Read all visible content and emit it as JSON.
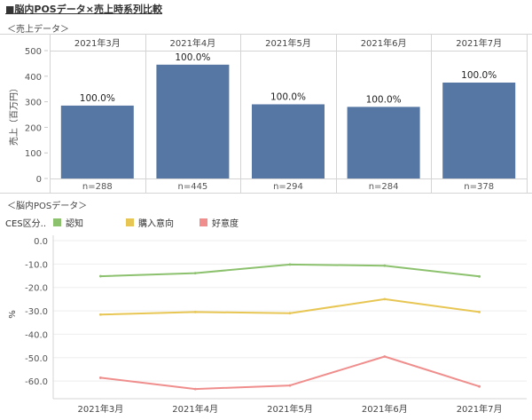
{
  "page_title": "■脳内POSデータ×売上時系列比較",
  "chart_data": [
    {
      "id": "sales",
      "type": "bar",
      "section_title": "＜売上データ＞",
      "categories": [
        "2021年3月",
        "2021年4月",
        "2021年5月",
        "2021年6月",
        "2021年7月"
      ],
      "values": [
        285,
        445,
        290,
        280,
        375
      ],
      "data_labels": [
        "100.0%",
        "100.0%",
        "100.0%",
        "100.0%",
        "100.0%"
      ],
      "footer_labels": [
        "n=288",
        "n=445",
        "n=294",
        "n=284",
        "n=378"
      ],
      "ylabel": "売上（百万円）",
      "yticks": [
        0,
        100,
        200,
        300,
        400,
        500
      ],
      "ylim": [
        0,
        500
      ],
      "color": "#5677a4"
    },
    {
      "id": "pos",
      "type": "line",
      "section_title": "＜脳内POSデータ＞",
      "legend_title": "CES区分..",
      "x": [
        "2021年3月",
        "2021年4月",
        "2021年5月",
        "2021年6月",
        "2021年7月"
      ],
      "series": [
        {
          "name": "認知",
          "color": "#8cc16e",
          "values": [
            -15.2,
            -13.9,
            -10.2,
            -10.7,
            -15.3
          ]
        },
        {
          "name": "購入意向",
          "color": "#e8c654",
          "values": [
            -31.6,
            -30.5,
            -31.0,
            -25.0,
            -30.5
          ]
        },
        {
          "name": "好意度",
          "color": "#ef8e8c",
          "values": [
            -58.6,
            -63.4,
            -61.9,
            -49.5,
            -62.3
          ]
        }
      ],
      "ylabel": "%",
      "yticks": [
        0.0,
        -10.0,
        -20.0,
        -30.0,
        -40.0,
        -50.0,
        -60.0
      ],
      "ytick_labels": [
        "0.0",
        "-10.0",
        "-20.0",
        "-30.0",
        "-40.0",
        "-50.0",
        "-60.0"
      ],
      "ylim": [
        -64.5,
        0
      ],
      "grid": true
    }
  ]
}
